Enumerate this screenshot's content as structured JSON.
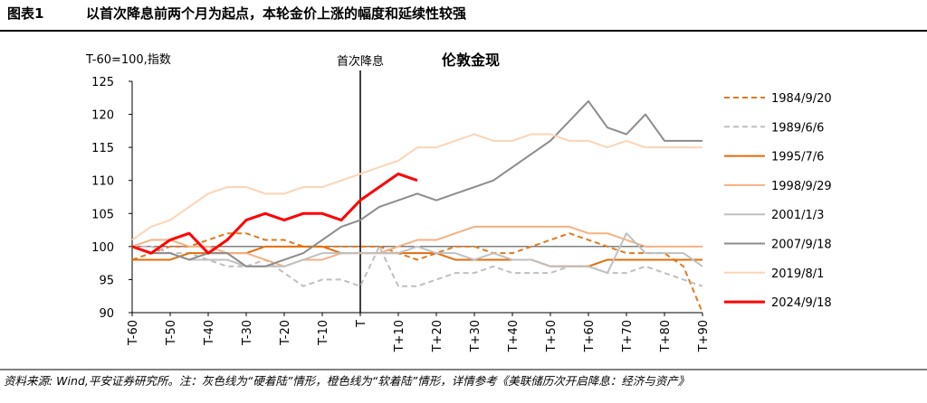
{
  "header": {
    "label": "图表1",
    "title": "以首次降息前两个月为起点，本轮金价上涨的幅度和延续性较强"
  },
  "footer": "资料来源: Wind,平安证券研究所。注：灰色线为“硬着陆”情形，橙色线为“软着陆”情形，详情参考《美联储历次开启降息：经济与资产》",
  "chart_data": {
    "type": "line",
    "title": "伦敦金现",
    "y_label": "T-60=100,指数",
    "annotation": "首次降息",
    "vline": 0,
    "hline": 100,
    "x": [
      -60,
      -55,
      -50,
      -45,
      -40,
      -35,
      -30,
      -25,
      -20,
      -15,
      -10,
      -5,
      0,
      5,
      10,
      15,
      20,
      25,
      30,
      35,
      40,
      45,
      50,
      55,
      60,
      65,
      70,
      75,
      80,
      85,
      90
    ],
    "xlim": [
      -60,
      90
    ],
    "xticks": [
      {
        "value": -60,
        "label": "T-60"
      },
      {
        "value": -50,
        "label": "T-50"
      },
      {
        "value": -40,
        "label": "T-40"
      },
      {
        "value": -30,
        "label": "T-30"
      },
      {
        "value": -20,
        "label": "T-20"
      },
      {
        "value": -10,
        "label": "T-10"
      },
      {
        "value": 0,
        "label": "T"
      },
      {
        "value": 10,
        "label": "T+10"
      },
      {
        "value": 20,
        "label": "T+20"
      },
      {
        "value": 30,
        "label": "T+30"
      },
      {
        "value": 40,
        "label": "T+40"
      },
      {
        "value": 50,
        "label": "T+50"
      },
      {
        "value": 60,
        "label": "T+60"
      },
      {
        "value": 70,
        "label": "T+70"
      },
      {
        "value": 80,
        "label": "T+80"
      },
      {
        "value": 90,
        "label": "T+90"
      }
    ],
    "ylim": [
      90,
      125
    ],
    "yticks": [
      90,
      95,
      100,
      105,
      110,
      115,
      120,
      125
    ],
    "series": [
      {
        "name": "1984/9/20",
        "color": "#e07a1f",
        "dash": true,
        "values": [
          98,
          99,
          100,
          100,
          101,
          102,
          102,
          101,
          101,
          100,
          100,
          100,
          100,
          100,
          99,
          98,
          99,
          100,
          100,
          99,
          99,
          100,
          101,
          102,
          101,
          100,
          99,
          99,
          99,
          97,
          90
        ]
      },
      {
        "name": "1989/6/6",
        "color": "#bfbfbf",
        "dash": true,
        "values": [
          100,
          100,
          99,
          99,
          98,
          97,
          97,
          98,
          96,
          94,
          95,
          95,
          94,
          100,
          94,
          94,
          95,
          96,
          96,
          97,
          96,
          96,
          96,
          97,
          97,
          96,
          96,
          97,
          96,
          95,
          94
        ]
      },
      {
        "name": "1995/7/6",
        "color": "#e36c0a",
        "dash": false,
        "values": [
          98,
          98,
          98,
          99,
          99,
          99,
          99,
          100,
          100,
          100,
          100,
          99,
          99,
          99,
          99,
          99,
          99,
          98,
          98,
          98,
          98,
          98,
          97,
          97,
          97,
          98,
          98,
          98,
          98,
          98,
          98
        ]
      },
      {
        "name": "1998/9/29",
        "color": "#f4b183",
        "dash": false,
        "values": [
          100,
          101,
          101,
          100,
          100,
          99,
          99,
          98,
          97,
          98,
          98,
          99,
          99,
          99,
          100,
          101,
          101,
          102,
          103,
          103,
          103,
          103,
          103,
          103,
          102,
          102,
          101,
          100,
          100,
          100,
          100
        ]
      },
      {
        "name": "2001/1/3",
        "color": "#c0c0c0",
        "dash": false,
        "values": [
          100,
          99,
          99,
          98,
          98,
          98,
          97,
          97,
          97,
          98,
          99,
          99,
          99,
          99,
          99,
          100,
          99,
          99,
          98,
          99,
          98,
          98,
          97,
          97,
          97,
          96,
          102,
          99,
          99,
          99,
          97
        ]
      },
      {
        "name": "2007/9/18",
        "color": "#8c8c8c",
        "dash": false,
        "values": [
          100,
          99,
          99,
          98,
          99,
          99,
          97,
          97,
          98,
          99,
          101,
          103,
          104,
          106,
          107,
          108,
          107,
          108,
          109,
          110,
          112,
          114,
          116,
          119,
          122,
          118,
          117,
          120,
          116,
          116,
          116
        ]
      },
      {
        "name": "2019/8/1",
        "color": "#fbd5b5",
        "dash": false,
        "values": [
          101,
          103,
          104,
          106,
          108,
          109,
          109,
          108,
          108,
          109,
          109,
          110,
          111,
          112,
          113,
          115,
          115,
          116,
          117,
          116,
          116,
          117,
          117,
          116,
          116,
          115,
          116,
          115,
          115,
          115,
          115
        ]
      },
      {
        "name": "2024/9/18",
        "color": "#ff0000",
        "dash": false,
        "width": 3,
        "values": [
          100,
          99,
          101,
          102,
          99,
          101,
          104,
          105,
          104,
          105,
          105,
          104,
          107,
          109,
          111,
          110,
          null,
          null,
          null,
          null,
          null,
          null,
          null,
          null,
          null,
          null,
          null,
          null,
          null,
          null,
          null
        ]
      }
    ]
  }
}
